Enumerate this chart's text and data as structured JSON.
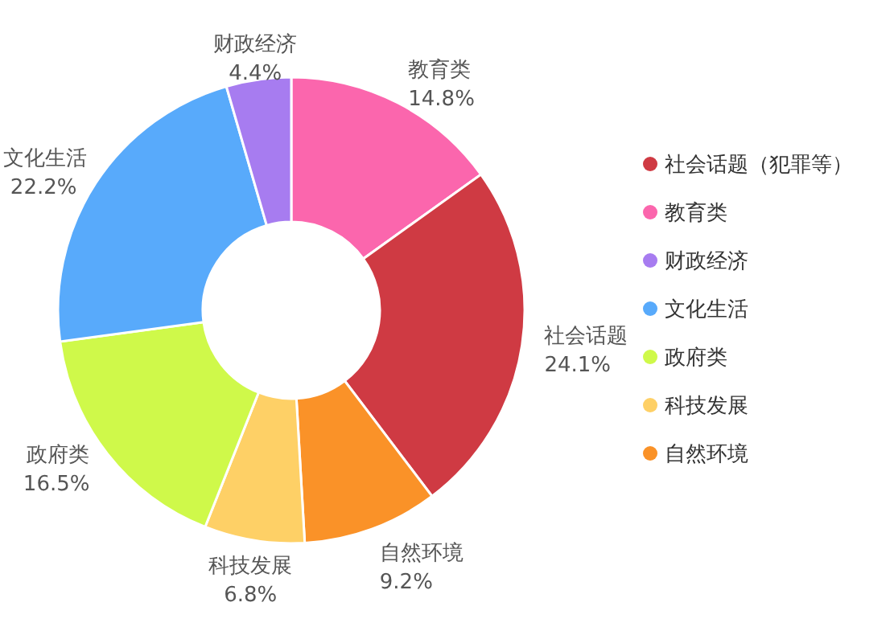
{
  "chart_data": {
    "type": "donut",
    "categories": [
      "社会话题（犯罪等）",
      "教育类",
      "财政经济",
      "文化生活",
      "政府类",
      "科技发展",
      "自然环境"
    ],
    "values": [
      24.1,
      14.8,
      4.4,
      22.2,
      16.5,
      6.8,
      9.2
    ],
    "colors": [
      "#cf3a43",
      "#fb66ad",
      "#a77cf0",
      "#58aafb",
      "#cff94a",
      "#fed066",
      "#fa9228"
    ],
    "value_labels": [
      "24.1%",
      "14.8%",
      "4.4%",
      "22.2%",
      "16.5%",
      "6.8%",
      "9.2%"
    ],
    "annotations": [
      "社会话题",
      "教育类",
      "财政经济",
      "文化生活",
      "政府类",
      "科技发展",
      "自然环境"
    ],
    "legend": "right"
  }
}
